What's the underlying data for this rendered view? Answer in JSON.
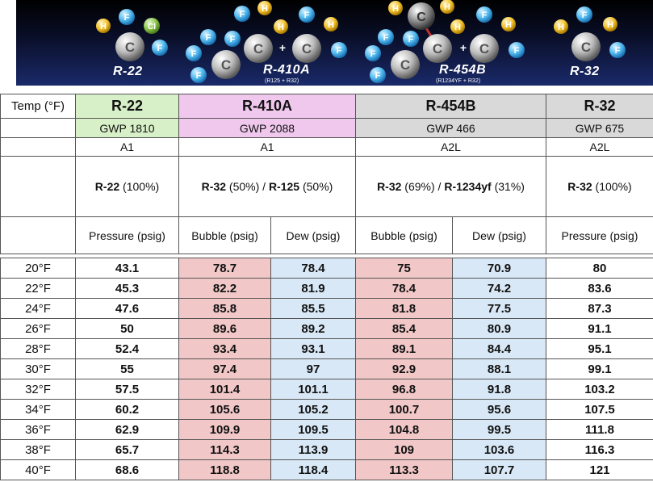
{
  "banner": {
    "molecules": [
      {
        "label": "R-22",
        "subtitle": ""
      },
      {
        "label": "R-410A",
        "subtitle": "(R125 + R32)"
      },
      {
        "label": "R-454B",
        "subtitle": "(R1234YF + R32)"
      },
      {
        "label": "R-32",
        "subtitle": ""
      }
    ],
    "atoms": {
      "h": "H",
      "f": "F",
      "c": "C",
      "cl": "Cl",
      "plus": "+"
    },
    "colors": {
      "hydrogen": "#f2c12e",
      "fluorine": "#4fb8ee",
      "carbon": "#c8c8c8",
      "chlorine": "#8bc34a",
      "highlight": "#e06020"
    }
  },
  "header": {
    "temp_label": "Temp (°F)",
    "refrigerants": [
      {
        "name": "R-22",
        "gwp": "GWP 1810",
        "class": "A1",
        "comp_bold1": "R-22",
        "comp_rest1": " (100%)",
        "comp_sep": "",
        "comp_bold2": "",
        "comp_rest2": ""
      },
      {
        "name": "R-410A",
        "gwp": "GWP 2088",
        "class": "A1",
        "comp_bold1": "R-32",
        "comp_rest1": " (50%) / ",
        "comp_bold2": "R-125",
        "comp_rest2": " (50%)"
      },
      {
        "name": "R-454B",
        "gwp": "GWP 466",
        "class": "A2L",
        "comp_bold1": "R-32",
        "comp_rest1": " (69%) / ",
        "comp_bold2": "R-1234yf",
        "comp_rest2": " (31%)"
      },
      {
        "name": "R-32",
        "gwp": "GWP 675",
        "class": "A2L",
        "comp_bold1": "R-32",
        "comp_rest1": " (100%)",
        "comp_bold2": "",
        "comp_rest2": ""
      }
    ],
    "pressure_labels": {
      "pressure": "Pressure (psig)",
      "bubble": "Bubble (psig)",
      "dew": "Dew (psig)"
    },
    "colors": {
      "r22": "#d8f0c8",
      "r410a": "#f0c8ee",
      "r454b": "#d9d9d9",
      "bubble": "#f1c7c7",
      "dew": "#d8e8f6"
    }
  },
  "rows": [
    {
      "temp": "20°F",
      "r22": "43.1",
      "r410a_bubble": "78.7",
      "r410a_dew": "78.4",
      "r454b_bubble": "75",
      "r454b_dew": "70.9",
      "r32": "80"
    },
    {
      "temp": "22°F",
      "r22": "45.3",
      "r410a_bubble": "82.2",
      "r410a_dew": "81.9",
      "r454b_bubble": "78.4",
      "r454b_dew": "74.2",
      "r32": "83.6"
    },
    {
      "temp": "24°F",
      "r22": "47.6",
      "r410a_bubble": "85.8",
      "r410a_dew": "85.5",
      "r454b_bubble": "81.8",
      "r454b_dew": "77.5",
      "r32": "87.3"
    },
    {
      "temp": "26°F",
      "r22": "50",
      "r410a_bubble": "89.6",
      "r410a_dew": "89.2",
      "r454b_bubble": "85.4",
      "r454b_dew": "80.9",
      "r32": "91.1"
    },
    {
      "temp": "28°F",
      "r22": "52.4",
      "r410a_bubble": "93.4",
      "r410a_dew": "93.1",
      "r454b_bubble": "89.1",
      "r454b_dew": "84.4",
      "r32": "95.1"
    },
    {
      "temp": "30°F",
      "r22": "55",
      "r410a_bubble": "97.4",
      "r410a_dew": "97",
      "r454b_bubble": "92.9",
      "r454b_dew": "88.1",
      "r32": "99.1"
    },
    {
      "temp": "32°F",
      "r22": "57.5",
      "r410a_bubble": "101.4",
      "r410a_dew": "101.1",
      "r454b_bubble": "96.8",
      "r454b_dew": "91.8",
      "r32": "103.2"
    },
    {
      "temp": "34°F",
      "r22": "60.2",
      "r410a_bubble": "105.6",
      "r410a_dew": "105.2",
      "r454b_bubble": "100.7",
      "r454b_dew": "95.6",
      "r32": "107.5"
    },
    {
      "temp": "36°F",
      "r22": "62.9",
      "r410a_bubble": "109.9",
      "r410a_dew": "109.5",
      "r454b_bubble": "104.8",
      "r454b_dew": "99.5",
      "r32": "111.8"
    },
    {
      "temp": "38°F",
      "r22": "65.7",
      "r410a_bubble": "114.3",
      "r410a_dew": "113.9",
      "r454b_bubble": "109",
      "r454b_dew": "103.6",
      "r32": "116.3"
    },
    {
      "temp": "40°F",
      "r22": "68.6",
      "r410a_bubble": "118.8",
      "r410a_dew": "118.4",
      "r454b_bubble": "113.3",
      "r454b_dew": "107.7",
      "r32": "121"
    }
  ]
}
